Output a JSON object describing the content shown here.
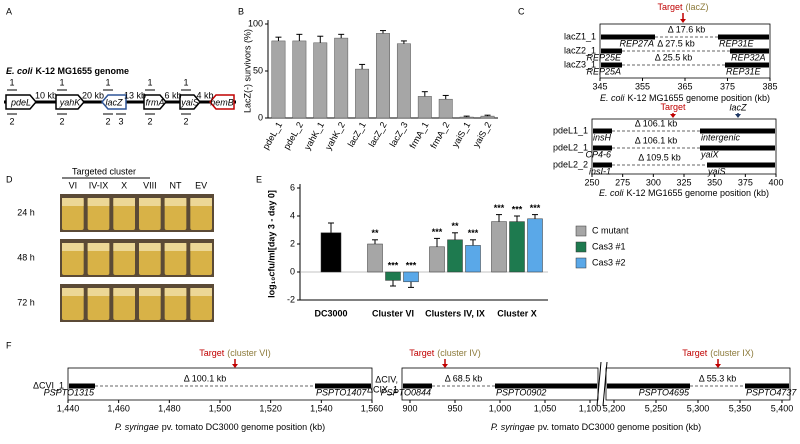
{
  "panels": {
    "A": {
      "letter": "A",
      "organism": "E. coli",
      "genome": "K-12 MG1655 genome",
      "genes": [
        {
          "name": "pdeL",
          "top": "1",
          "bottom": "2",
          "direction": "right",
          "color": "#000000"
        },
        {
          "name": "yahK",
          "top": "1",
          "bottom": "2",
          "direction": "right",
          "color": "#000000"
        },
        {
          "name": "lacZ",
          "top": "1",
          "bottom": "2",
          "bottom2": "3",
          "direction": "left",
          "color": "#2f5597"
        },
        {
          "name": "frmA",
          "top": "1",
          "bottom": "2",
          "direction": "right",
          "color": "#000000"
        },
        {
          "name": "yaiS",
          "top": "1",
          "bottom": "2",
          "direction": "right",
          "color": "#000000"
        },
        {
          "name": "hemB",
          "direction": "left",
          "color": "#c00000"
        }
      ],
      "distances": [
        "10 kb",
        "20 kb",
        "13 kb",
        "6 kb",
        "4 kb"
      ]
    },
    "B": {
      "letter": "B"
    },
    "C": {
      "letter": "C",
      "axis_organism": "E. coli",
      "axis_title": "K-12 MG1655 genome position (kb)",
      "top": {
        "target": "Target",
        "target_gene": "(lacZ)",
        "rows": [
          {
            "name": "lacZ1_1",
            "deletion": "Δ 17.6 kb",
            "left": "REP27A",
            "right": "REP31E"
          },
          {
            "name": "lacZ2_1",
            "deletion": "Δ 27.5 kb",
            "left": "REP25E",
            "right": "REP32A"
          },
          {
            "name": "lacZ3_1",
            "deletion": "Δ 25.5 kb",
            "left": "REP25A",
            "right": "REP31E"
          }
        ],
        "xlim": [
          345,
          385
        ],
        "xticks": [
          345,
          355,
          365,
          375,
          385
        ]
      },
      "bottom": {
        "target": "Target",
        "marker": "lacZ",
        "rows": [
          {
            "name": "pdeL1_1",
            "deletion": "Δ 106.1 kb",
            "left": "insH",
            "right": "intergenic"
          },
          {
            "name": "pdeL2_1",
            "deletion": "Δ 106.1 kb",
            "left": "CP4-6",
            "right": "yaiX"
          },
          {
            "name": "pdeL2_2",
            "deletion": "Δ 109.5 kb",
            "left": "insI-1",
            "right": "yaiS"
          }
        ],
        "xlim": [
          250,
          400
        ],
        "xticks": [
          250,
          275,
          300,
          325,
          350,
          375,
          400
        ]
      }
    },
    "D": {
      "letter": "D",
      "header": "Targeted cluster",
      "columns": [
        "VI",
        "IV-IX",
        "X",
        "VIII",
        "NT",
        "EV"
      ],
      "times": [
        "24 h",
        "48 h",
        "72 h"
      ]
    },
    "E": {
      "letter": "E"
    },
    "F": {
      "letter": "F",
      "axis_organism": "P. syringae",
      "axis_title": "pv. tomato DC3000 genome position (kb)",
      "left": {
        "row": "ΔCVI_1",
        "target": "Target",
        "cluster": "(cluster VI)",
        "deletion": "Δ 100.1 kb",
        "left": "PSPTO1315",
        "right": "PSPTO1407",
        "xlim": [
          1440,
          1560
        ],
        "xticks": [
          {
            "value": 1440,
            "label": "1,440"
          },
          {
            "value": 1460,
            "label": "1,460"
          },
          {
            "value": 1480,
            "label": "1,480"
          },
          {
            "value": 1500,
            "label": "1,500"
          },
          {
            "value": 1520,
            "label": "1,520"
          },
          {
            "value": 1540,
            "label": "1,540"
          },
          {
            "value": 1560,
            "label": "1,560"
          }
        ]
      },
      "right": {
        "row": [
          "ΔCIV,",
          "ΔCIX_1"
        ],
        "segments": [
          {
            "target": "Target",
            "cluster": "(cluster IV)",
            "deletion": "Δ 68.5 kb",
            "left": "PSPTO0844",
            "right": "PSPTO0902",
            "xlim": [
              900,
              1100
            ],
            "xticks": [
              900,
              950,
              {
                "value": 1000,
                "label": "1,000"
              },
              {
                "value": 1050,
                "label": "1,050"
              },
              {
                "value": 1100,
                "label": "1,100"
              }
            ]
          },
          {
            "target": "Target",
            "cluster": "(cluster IX)",
            "deletion": "Δ 55.3 kb",
            "left": "PSPTO4695",
            "right": "PSPTO4737",
            "xlim": [
              5200,
              5400
            ],
            "xticks": [
              {
                "value": 5200,
                "label": "5,200"
              },
              {
                "value": 5250,
                "label": "5,250"
              },
              {
                "value": 5300,
                "label": "5,300"
              },
              {
                "value": 5350,
                "label": "5,350"
              },
              {
                "value": 5400,
                "label": "5,400"
              }
            ]
          }
        ]
      }
    }
  },
  "chart_data": [
    {
      "type": "bar",
      "ylabel": "LacZ(-) survivors (%)",
      "categories": [
        "pdeL_1",
        "pdeL_2",
        "yahK_1",
        "yahK_2",
        "lacZ_1",
        "lacZ_2",
        "lacZ_3",
        "frmA_1",
        "frmA_2",
        "yaiS_1",
        "yaiS_2"
      ],
      "values": [
        82,
        82,
        80,
        85,
        52,
        90,
        79,
        23,
        20,
        1,
        2
      ],
      "errors": [
        4,
        7,
        7,
        4,
        5,
        3,
        3,
        5,
        4,
        1,
        1
      ],
      "color": "#a6a6a6",
      "ylim": [
        0,
        100
      ],
      "yticks": [
        0,
        50,
        100
      ]
    },
    {
      "type": "grouped_bar",
      "ylabel": "log₁₀cfu/ml[day 3 - day 0]",
      "categories": [
        "DC3000",
        "Cluster VI",
        "Clusters IV, IX",
        "Cluster X"
      ],
      "control_value": 2.8,
      "control_error": 0.7,
      "control_color": "#000000",
      "series": [
        {
          "name": "C mutant",
          "color": "#a6a6a6",
          "values": [
            null,
            2.0,
            1.8,
            3.6
          ],
          "errors": [
            null,
            0.3,
            0.6,
            0.5
          ],
          "significance": [
            null,
            "**",
            "***",
            "***"
          ]
        },
        {
          "name": "Cas3 #1",
          "color": "#1e7a4f",
          "values": [
            null,
            -0.6,
            2.3,
            3.6
          ],
          "errors": [
            null,
            0.4,
            0.5,
            0.4
          ],
          "significance": [
            null,
            "***",
            "**",
            "***"
          ]
        },
        {
          "name": "Cas3 #2",
          "color": "#5aa8e8",
          "values": [
            null,
            -0.7,
            1.9,
            3.8
          ],
          "errors": [
            null,
            0.4,
            0.4,
            0.3
          ],
          "significance": [
            null,
            "***",
            "***",
            "***"
          ]
        }
      ],
      "ylim": [
        -2,
        6
      ],
      "yticks": [
        -2,
        0,
        2,
        4,
        6
      ],
      "legend": "right"
    }
  ]
}
